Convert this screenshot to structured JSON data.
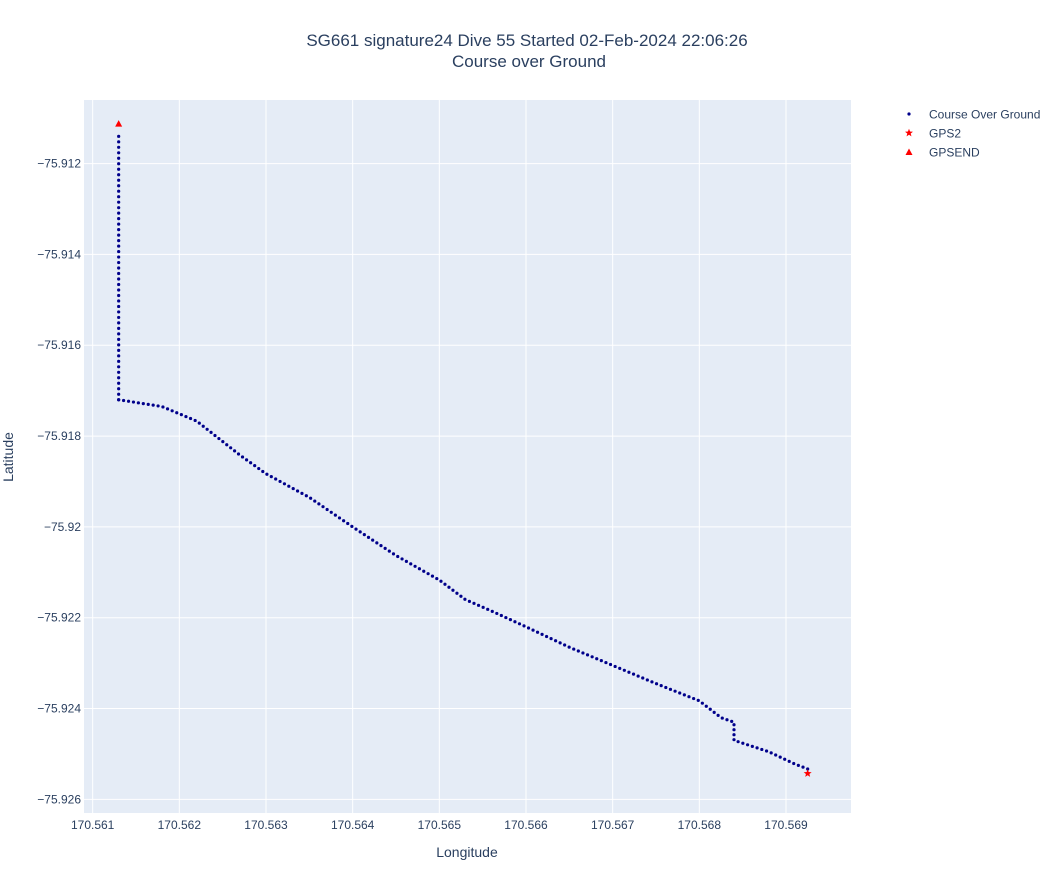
{
  "chart_data": {
    "type": "scatter",
    "title_line1": "SG661 signature24 Dive 55 Started 02-Feb-2024 22:06:26",
    "title_line2": "Course over Ground",
    "xlabel": "Longitude",
    "ylabel": "Latitude",
    "xlim": [
      170.5609,
      170.56975
    ],
    "ylim": [
      -75.9263,
      -75.9106
    ],
    "xticks": [
      170.561,
      170.562,
      170.563,
      170.564,
      170.565,
      170.566,
      170.567,
      170.568,
      170.569
    ],
    "xtick_labels": [
      "170.561",
      "170.562",
      "170.563",
      "170.564",
      "170.565",
      "170.566",
      "170.567",
      "170.568",
      "170.569"
    ],
    "yticks": [
      -75.912,
      -75.914,
      -75.916,
      -75.918,
      -75.92,
      -75.922,
      -75.924,
      -75.926
    ],
    "ytick_labels": [
      "−75.912",
      "−75.914",
      "−75.916",
      "−75.918",
      "−75.92",
      "−75.922",
      "−75.924",
      "−75.926"
    ],
    "grid": true,
    "legend_position": "right",
    "plot_bg": "#e5ecf6",
    "series": [
      {
        "name": "Course Over Ground",
        "marker": "dot",
        "color": "#00008b",
        "vertical_segment": {
          "x": 170.5613,
          "y_from": -75.9114,
          "y_to": -75.9172,
          "count": 48
        },
        "path": [
          [
            170.5613,
            -75.9172
          ],
          [
            170.5618,
            -75.91735
          ],
          [
            170.5622,
            -75.91767
          ],
          [
            170.5627,
            -75.91842
          ],
          [
            170.563,
            -75.91883
          ],
          [
            170.5635,
            -75.91935
          ],
          [
            170.564,
            -75.92
          ],
          [
            170.5645,
            -75.92063
          ],
          [
            170.565,
            -75.92117
          ],
          [
            170.5653,
            -75.9216
          ],
          [
            170.5656,
            -75.92185
          ],
          [
            170.566,
            -75.9222
          ],
          [
            170.5665,
            -75.92265
          ],
          [
            170.567,
            -75.92305
          ],
          [
            170.5675,
            -75.92345
          ],
          [
            170.568,
            -75.92383
          ],
          [
            170.56825,
            -75.9242
          ],
          [
            170.5684,
            -75.9243
          ],
          [
            170.5684,
            -75.9247
          ],
          [
            170.5688,
            -75.92495
          ],
          [
            170.5691,
            -75.92522
          ],
          [
            170.56925,
            -75.92533
          ]
        ],
        "path_count": 160
      },
      {
        "name": "GPS2",
        "marker": "star",
        "color": "#ff0000",
        "x": [
          170.56925
        ],
        "y": [
          -75.92543
        ]
      },
      {
        "name": "GPSEND",
        "marker": "triangle-up",
        "color": "#ff0000",
        "x": [
          170.5613
        ],
        "y": [
          -75.91112
        ]
      }
    ]
  }
}
